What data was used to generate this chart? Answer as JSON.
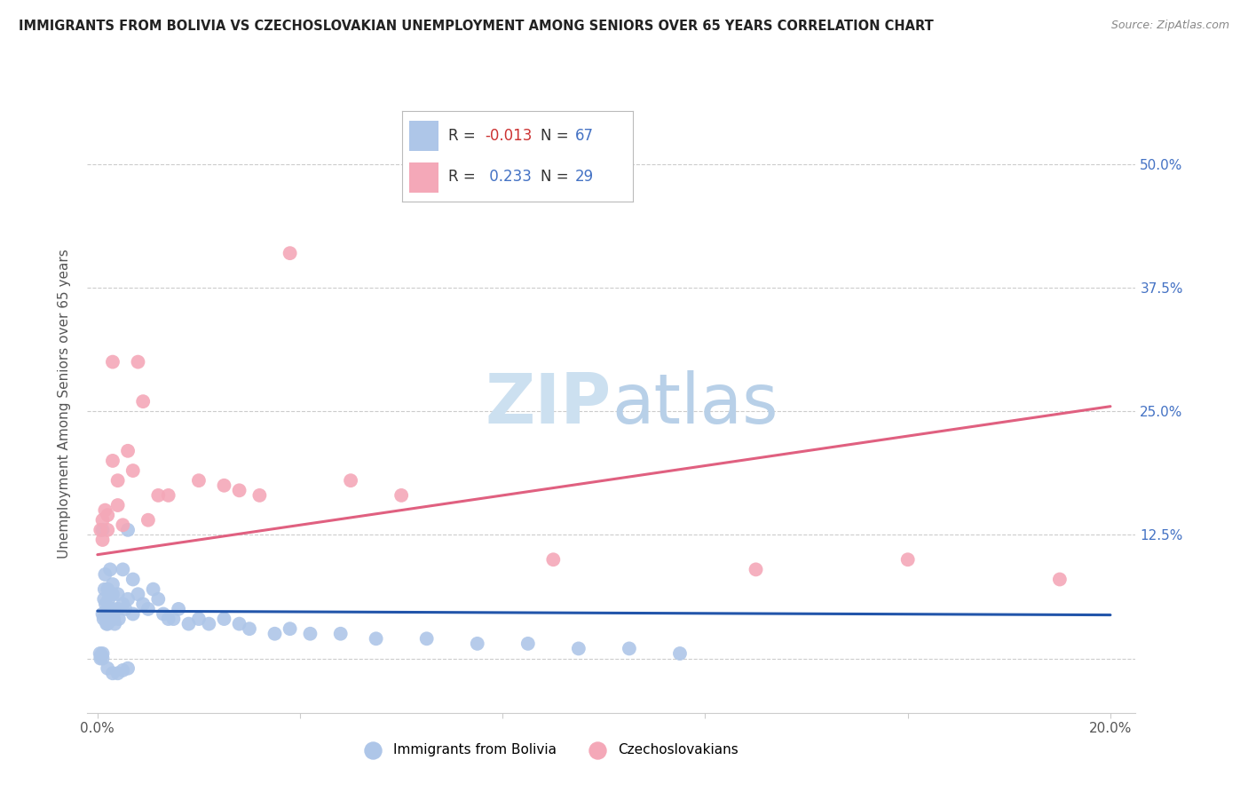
{
  "title": "IMMIGRANTS FROM BOLIVIA VS CZECHOSLOVAKIAN UNEMPLOYMENT AMONG SENIORS OVER 65 YEARS CORRELATION CHART",
  "source": "Source: ZipAtlas.com",
  "ylabel": "Unemployment Among Seniors over 65 years",
  "bolivia_color": "#aec6e8",
  "czech_color": "#f4a8b8",
  "bolivia_line_color": "#2255aa",
  "czech_line_color": "#e06080",
  "watermark_zip_color": "#ccdff0",
  "watermark_atlas_color": "#b8cfe8",
  "bolivia_x": [
    0.0005,
    0.0007,
    0.0008,
    0.001,
    0.001,
    0.001,
    0.0012,
    0.0013,
    0.0014,
    0.0015,
    0.0016,
    0.0017,
    0.0018,
    0.002,
    0.002,
    0.002,
    0.0022,
    0.0023,
    0.0025,
    0.003,
    0.003,
    0.003,
    0.0032,
    0.0034,
    0.004,
    0.004,
    0.0042,
    0.005,
    0.005,
    0.0055,
    0.006,
    0.006,
    0.007,
    0.007,
    0.008,
    0.009,
    0.01,
    0.011,
    0.012,
    0.013,
    0.014,
    0.015,
    0.016,
    0.018,
    0.02,
    0.022,
    0.025,
    0.028,
    0.03,
    0.035,
    0.038,
    0.042,
    0.048,
    0.055,
    0.065,
    0.075,
    0.085,
    0.095,
    0.105,
    0.115,
    0.0006,
    0.001,
    0.002,
    0.003,
    0.004,
    0.005,
    0.006
  ],
  "bolivia_y": [
    0.005,
    0.002,
    0.003,
    0.13,
    0.045,
    0.005,
    0.04,
    0.06,
    0.07,
    0.085,
    0.055,
    0.04,
    0.035,
    0.07,
    0.05,
    0.035,
    0.06,
    0.05,
    0.09,
    0.075,
    0.065,
    0.05,
    0.04,
    0.035,
    0.065,
    0.05,
    0.04,
    0.09,
    0.055,
    0.05,
    0.13,
    0.06,
    0.08,
    0.045,
    0.065,
    0.055,
    0.05,
    0.07,
    0.06,
    0.045,
    0.04,
    0.04,
    0.05,
    0.035,
    0.04,
    0.035,
    0.04,
    0.035,
    0.03,
    0.025,
    0.03,
    0.025,
    0.025,
    0.02,
    0.02,
    0.015,
    0.015,
    0.01,
    0.01,
    0.005,
    0.0,
    0.0,
    -0.01,
    -0.015,
    -0.015,
    -0.012,
    -0.01
  ],
  "czech_x": [
    0.0006,
    0.001,
    0.001,
    0.0015,
    0.002,
    0.002,
    0.003,
    0.003,
    0.004,
    0.004,
    0.005,
    0.006,
    0.007,
    0.008,
    0.009,
    0.01,
    0.012,
    0.014,
    0.02,
    0.025,
    0.028,
    0.032,
    0.038,
    0.05,
    0.06,
    0.09,
    0.13,
    0.16,
    0.19
  ],
  "czech_y": [
    0.13,
    0.14,
    0.12,
    0.15,
    0.145,
    0.13,
    0.3,
    0.2,
    0.18,
    0.155,
    0.135,
    0.21,
    0.19,
    0.3,
    0.26,
    0.14,
    0.165,
    0.165,
    0.18,
    0.175,
    0.17,
    0.165,
    0.41,
    0.18,
    0.165,
    0.1,
    0.09,
    0.1,
    0.08
  ],
  "bolivia_trend": [
    -0.013,
    67
  ],
  "czech_trend": [
    0.233,
    29
  ],
  "xlim": [
    -0.002,
    0.205
  ],
  "ylim": [
    -0.055,
    0.57
  ],
  "yticks": [
    0.0,
    0.125,
    0.25,
    0.375,
    0.5
  ],
  "ytick_labels": [
    "",
    "12.5%",
    "25.0%",
    "37.5%",
    "50.0%"
  ],
  "xticks": [
    0.0,
    0.04,
    0.08,
    0.12,
    0.16,
    0.2
  ],
  "xtick_labels": [
    "0.0%",
    "",
    "",
    "",
    "",
    "20.0%"
  ]
}
